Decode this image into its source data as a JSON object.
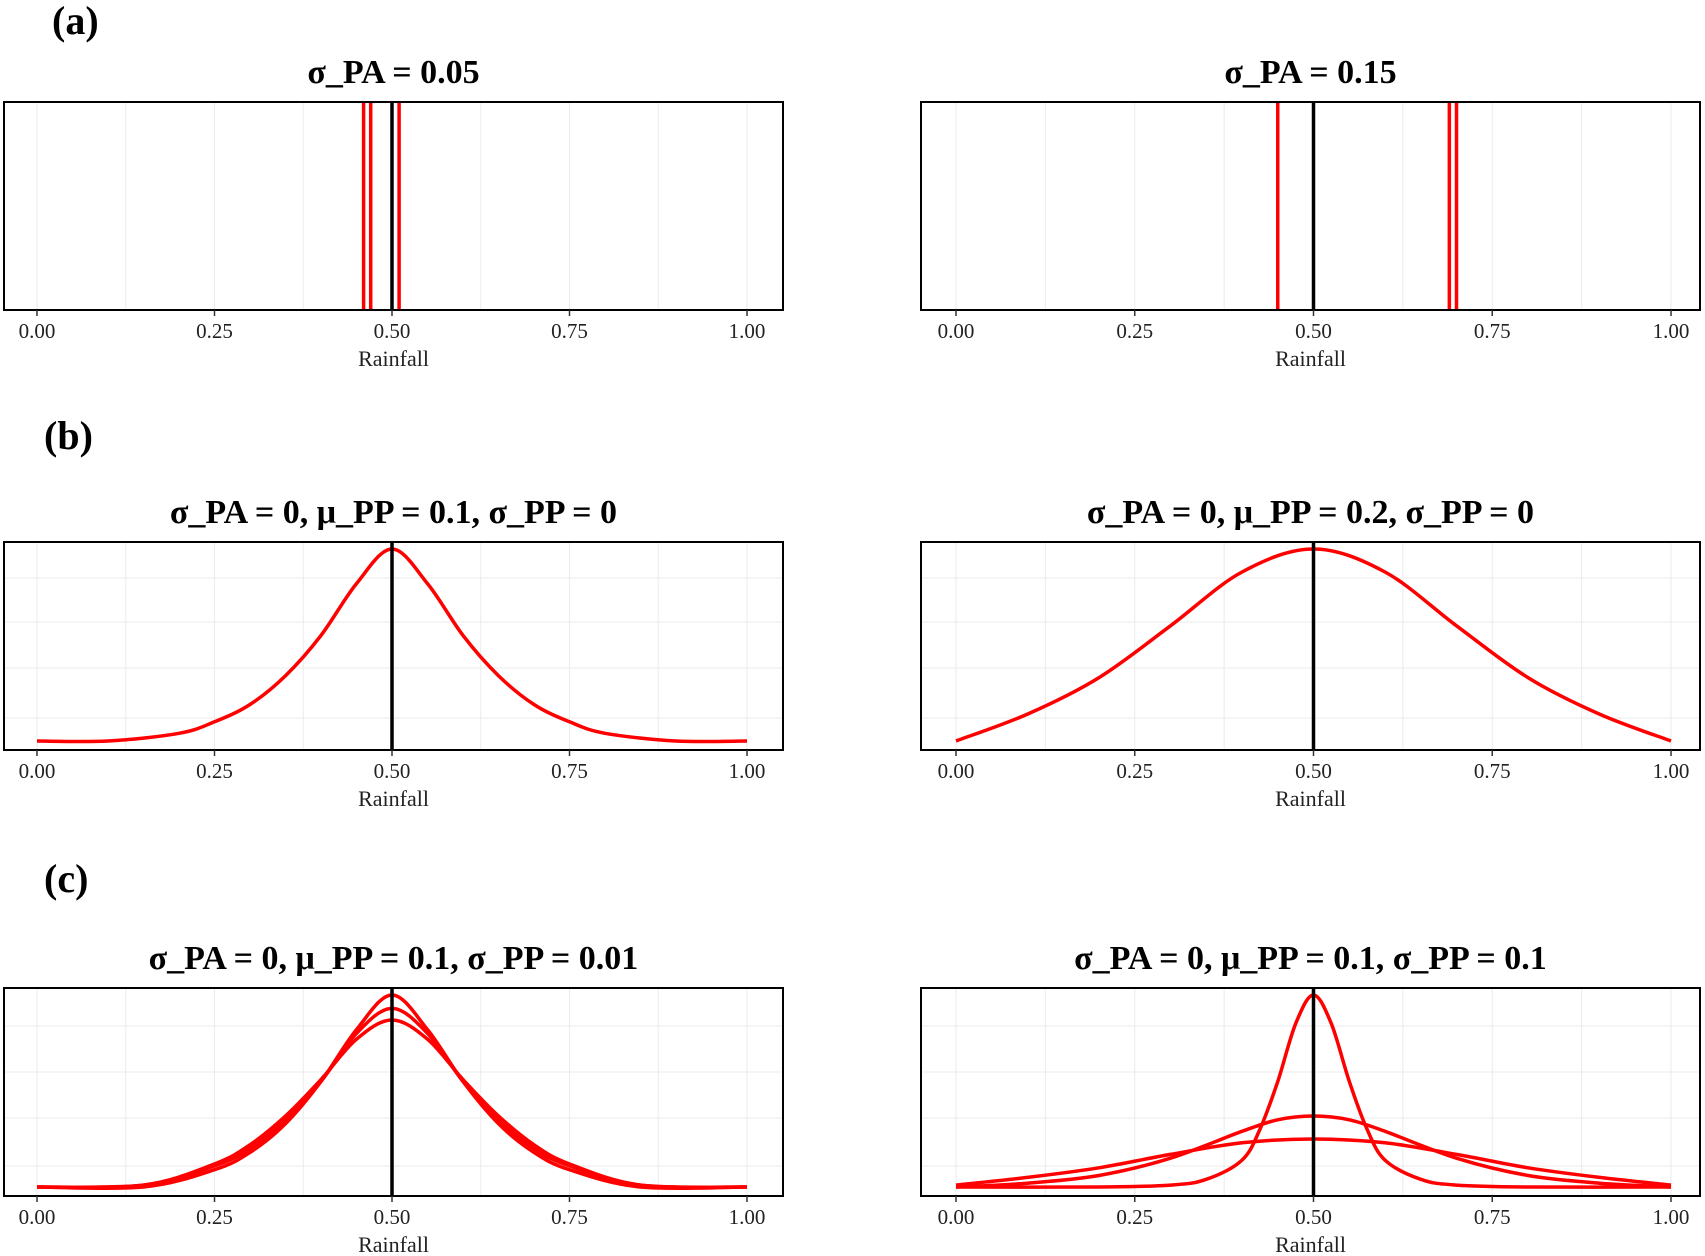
{
  "figure": {
    "panel_labels": [
      "(a)",
      "(b)",
      "(c)"
    ]
  },
  "colors": {
    "curve": "#ff0000",
    "reference": "#000000",
    "grid": "#ebebeb",
    "frame": "#000000"
  },
  "chart_data": [
    {
      "type": "line",
      "group": "(a)",
      "title": "σ_PA = 0.05",
      "xlabel": "Rainfall",
      "ylabel": "",
      "xlim": [
        0,
        1
      ],
      "x_ticks": [
        "0.00",
        "0.25",
        "0.50",
        "0.75",
        "1.00"
      ],
      "grid": true,
      "reference_vlines": [
        0.5
      ],
      "curve_vlines": [
        0.46,
        0.47,
        0.51
      ]
    },
    {
      "type": "line",
      "group": "(a)",
      "title": "σ_PA = 0.15",
      "xlabel": "Rainfall",
      "ylabel": "",
      "xlim": [
        0,
        1
      ],
      "x_ticks": [
        "0.00",
        "0.25",
        "0.50",
        "0.75",
        "1.00"
      ],
      "grid": true,
      "reference_vlines": [
        0.5
      ],
      "curve_vlines": [
        0.45,
        0.69,
        0.7
      ]
    },
    {
      "type": "line",
      "group": "(b)",
      "title": "σ_PA = 0, μ_PP = 0.1, σ_PP = 0",
      "xlabel": "Rainfall",
      "ylabel": "",
      "xlim": [
        0,
        1
      ],
      "x_ticks": [
        "0.00",
        "0.25",
        "0.50",
        "0.75",
        "1.00"
      ],
      "grid": true,
      "reference_vlines": [
        0.5
      ],
      "curves": [
        {
          "x": [
            0.0,
            0.1,
            0.2,
            0.25,
            0.3,
            0.35,
            0.4,
            0.45,
            0.5,
            0.55,
            0.6,
            0.65,
            0.7,
            0.75,
            0.8,
            0.9,
            1.0
          ],
          "y": [
            0.0,
            0.0,
            0.04,
            0.1,
            0.19,
            0.34,
            0.55,
            0.82,
            1.0,
            0.82,
            0.55,
            0.34,
            0.19,
            0.1,
            0.04,
            0.0,
            0.0
          ]
        }
      ]
    },
    {
      "type": "line",
      "group": "(b)",
      "title": "σ_PA = 0, μ_PP = 0.2, σ_PP = 0",
      "xlabel": "Rainfall",
      "ylabel": "",
      "xlim": [
        0,
        1
      ],
      "x_ticks": [
        "0.00",
        "0.25",
        "0.50",
        "0.75",
        "1.00"
      ],
      "grid": true,
      "reference_vlines": [
        0.5
      ],
      "curves": [
        {
          "x": [
            0.0,
            0.1,
            0.2,
            0.3,
            0.4,
            0.5,
            0.6,
            0.7,
            0.8,
            0.9,
            1.0
          ],
          "y": [
            0.0,
            0.14,
            0.33,
            0.6,
            0.88,
            1.0,
            0.88,
            0.6,
            0.33,
            0.14,
            0.0
          ]
        }
      ]
    },
    {
      "type": "line",
      "group": "(c)",
      "title": "σ_PA = 0, μ_PP = 0.1, σ_PP = 0.01",
      "xlabel": "Rainfall",
      "ylabel": "",
      "xlim": [
        0,
        1
      ],
      "x_ticks": [
        "0.00",
        "0.25",
        "0.50",
        "0.75",
        "1.00"
      ],
      "grid": true,
      "reference_vlines": [
        0.5
      ],
      "curves": [
        {
          "x": [
            0.0,
            0.15,
            0.25,
            0.3,
            0.35,
            0.4,
            0.45,
            0.5,
            0.55,
            0.6,
            0.65,
            0.7,
            0.75,
            0.85,
            1.0
          ],
          "y": [
            0.0,
            0.0,
            0.09,
            0.18,
            0.33,
            0.55,
            0.82,
            1.0,
            0.82,
            0.55,
            0.33,
            0.18,
            0.09,
            0.0,
            0.0
          ]
        },
        {
          "x": [
            0.0,
            0.15,
            0.25,
            0.3,
            0.35,
            0.4,
            0.45,
            0.5,
            0.55,
            0.6,
            0.65,
            0.7,
            0.75,
            0.85,
            1.0
          ],
          "y": [
            0.0,
            0.01,
            0.11,
            0.2,
            0.35,
            0.55,
            0.8,
            0.93,
            0.8,
            0.55,
            0.35,
            0.2,
            0.11,
            0.01,
            0.0
          ]
        },
        {
          "x": [
            0.0,
            0.15,
            0.25,
            0.3,
            0.35,
            0.4,
            0.45,
            0.5,
            0.55,
            0.6,
            0.65,
            0.7,
            0.75,
            0.85,
            1.0
          ],
          "y": [
            0.0,
            0.01,
            0.12,
            0.22,
            0.37,
            0.56,
            0.77,
            0.87,
            0.77,
            0.56,
            0.37,
            0.22,
            0.12,
            0.01,
            0.0
          ]
        }
      ]
    },
    {
      "type": "line",
      "group": "(c)",
      "title": "σ_PA = 0, μ_PP = 0.1, σ_PP = 0.1",
      "xlabel": "Rainfall",
      "ylabel": "",
      "xlim": [
        0,
        1
      ],
      "x_ticks": [
        "0.00",
        "0.25",
        "0.50",
        "0.75",
        "1.00"
      ],
      "grid": true,
      "reference_vlines": [
        0.5
      ],
      "curves": [
        {
          "x": [
            0.0,
            0.2,
            0.3,
            0.35,
            0.4,
            0.425,
            0.45,
            0.475,
            0.5,
            0.525,
            0.55,
            0.575,
            0.6,
            0.65,
            0.7,
            0.8,
            1.0
          ],
          "y": [
            0.0,
            0.0,
            0.01,
            0.04,
            0.14,
            0.3,
            0.55,
            0.85,
            1.0,
            0.85,
            0.55,
            0.3,
            0.14,
            0.04,
            0.01,
            0.0,
            0.0
          ]
        },
        {
          "x": [
            0.0,
            0.1,
            0.2,
            0.3,
            0.4,
            0.45,
            0.5,
            0.55,
            0.6,
            0.7,
            0.8,
            0.9,
            1.0
          ],
          "y": [
            0.0,
            0.02,
            0.06,
            0.15,
            0.29,
            0.35,
            0.37,
            0.35,
            0.29,
            0.15,
            0.06,
            0.02,
            0.0
          ]
        },
        {
          "x": [
            0.0,
            0.1,
            0.2,
            0.3,
            0.4,
            0.5,
            0.6,
            0.7,
            0.8,
            0.9,
            1.0
          ],
          "y": [
            0.01,
            0.05,
            0.1,
            0.17,
            0.23,
            0.25,
            0.23,
            0.17,
            0.1,
            0.05,
            0.01
          ]
        }
      ]
    }
  ]
}
